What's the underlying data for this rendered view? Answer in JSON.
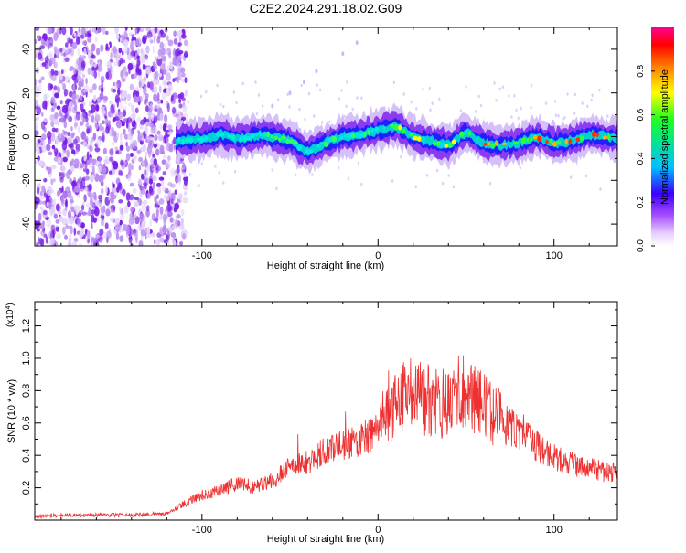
{
  "title": "C2E2.2024.291.18.02.G09",
  "chart_data": [
    {
      "type": "heatmap",
      "name": "spectrogram",
      "xlabel": "Height of straight line (km)",
      "ylabel": "Frequency (Hz)",
      "xlim": [
        -195,
        136
      ],
      "ylim": [
        -50,
        50
      ],
      "xticks": [
        -100,
        0,
        100
      ],
      "xtick_labels": [
        "-100",
        "0",
        "100"
      ],
      "yticks": [
        -40,
        -20,
        0,
        20,
        40
      ],
      "ytick_labels": [
        "-40",
        "-20",
        "0",
        "20",
        "40"
      ],
      "colorbar": {
        "label": "Normalized spectral amplitude",
        "ticks": [
          0.0,
          0.2,
          0.4,
          0.6,
          0.8
        ],
        "tick_labels": [
          "0.0",
          "0.2",
          "0.4",
          "0.6",
          "0.8"
        ],
        "range": [
          0,
          1
        ],
        "colors": [
          "#ffffff",
          "#c9a0ff",
          "#8a2be2",
          "#0000ff",
          "#00e5ff",
          "#00ff40",
          "#ffff00",
          "#ff0000",
          "#ff00aa"
        ]
      },
      "noise_region_x": [
        -195,
        -115
      ],
      "signal_region_x": [
        -115,
        136
      ],
      "ridge": [
        {
          "x": -115,
          "y": -2
        },
        {
          "x": -100,
          "y": -1
        },
        {
          "x": -90,
          "y": 1
        },
        {
          "x": -80,
          "y": -1
        },
        {
          "x": -65,
          "y": 1
        },
        {
          "x": -50,
          "y": -2
        },
        {
          "x": -40,
          "y": -7
        },
        {
          "x": -30,
          "y": -3
        },
        {
          "x": -20,
          "y": 0
        },
        {
          "x": -10,
          "y": 1
        },
        {
          "x": 0,
          "y": 3
        },
        {
          "x": 10,
          "y": 5
        },
        {
          "x": 20,
          "y": 0
        },
        {
          "x": 30,
          "y": -2
        },
        {
          "x": 40,
          "y": -4
        },
        {
          "x": 50,
          "y": 2
        },
        {
          "x": 60,
          "y": -3
        },
        {
          "x": 70,
          "y": -4
        },
        {
          "x": 80,
          "y": -3
        },
        {
          "x": 90,
          "y": 0
        },
        {
          "x": 100,
          "y": -3
        },
        {
          "x": 110,
          "y": -2
        },
        {
          "x": 120,
          "y": 1
        },
        {
          "x": 136,
          "y": -1
        }
      ]
    },
    {
      "type": "line",
      "name": "snr",
      "xlabel": "Height of straight line (km)",
      "ylabel": "SNR (10 * v/v)",
      "scale_label": "(x10",
      "scale_exponent": "4",
      "scale_close": ")",
      "xlim": [
        -195,
        136
      ],
      "ylim": [
        0,
        1.35
      ],
      "xticks": [
        -100,
        0,
        100
      ],
      "xtick_labels": [
        "-100",
        "0",
        "100"
      ],
      "yticks": [
        0.2,
        0.4,
        0.6,
        0.8,
        1.0,
        1.2
      ],
      "ytick_labels": [
        "0.2",
        "0.4",
        "0.6",
        "0.8",
        "1.0",
        "1.2"
      ],
      "color": "#ee3030",
      "series": [
        {
          "x": [
            -195,
            -180,
            -160,
            -140,
            -120,
            -110,
            -100,
            -90,
            -80,
            -70,
            -60,
            -50,
            -40,
            -30,
            -20,
            -10,
            0,
            10,
            20,
            30,
            40,
            50,
            60,
            70,
            80,
            90,
            100,
            110,
            120,
            136
          ],
          "y": [
            0.02,
            0.03,
            0.03,
            0.03,
            0.04,
            0.1,
            0.15,
            0.18,
            0.22,
            0.2,
            0.24,
            0.33,
            0.35,
            0.42,
            0.45,
            0.48,
            0.55,
            0.7,
            0.75,
            0.72,
            0.7,
            0.8,
            0.68,
            0.6,
            0.52,
            0.45,
            0.38,
            0.34,
            0.31,
            0.28
          ]
        }
      ]
    }
  ]
}
